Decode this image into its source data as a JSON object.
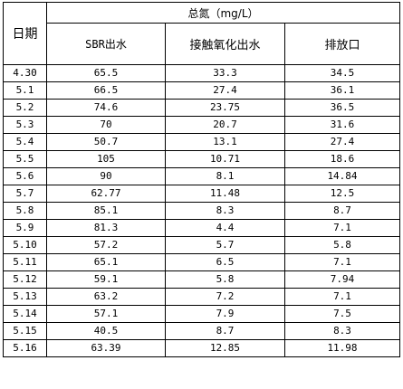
{
  "table": {
    "headers": {
      "date": "日期",
      "group": "总氮（mg/L）",
      "columns": [
        "SBR出水",
        "接触氧化出水",
        "排放口"
      ]
    },
    "rows": [
      {
        "date": "4.30",
        "sbr": "65.5",
        "contact": "33.3",
        "outlet": "34.5"
      },
      {
        "date": "5.1",
        "sbr": "66.5",
        "contact": "27.4",
        "outlet": "36.1"
      },
      {
        "date": "5.2",
        "sbr": "74.6",
        "contact": "23.75",
        "outlet": "36.5"
      },
      {
        "date": "5.3",
        "sbr": "70",
        "contact": "20.7",
        "outlet": "31.6"
      },
      {
        "date": "5.4",
        "sbr": "50.7",
        "contact": "13.1",
        "outlet": "27.4"
      },
      {
        "date": "5.5",
        "sbr": "105",
        "contact": "10.71",
        "outlet": "18.6"
      },
      {
        "date": "5.6",
        "sbr": "90",
        "contact": "8.1",
        "outlet": "14.84"
      },
      {
        "date": "5.7",
        "sbr": "62.77",
        "contact": "11.48",
        "outlet": "12.5"
      },
      {
        "date": "5.8",
        "sbr": "85.1",
        "contact": "8.3",
        "outlet": "8.7"
      },
      {
        "date": "5.9",
        "sbr": "81.3",
        "contact": "4.4",
        "outlet": "7.1"
      },
      {
        "date": "5.10",
        "sbr": "57.2",
        "contact": "5.7",
        "outlet": "5.8"
      },
      {
        "date": "5.11",
        "sbr": "65.1",
        "contact": "6.5",
        "outlet": "7.1"
      },
      {
        "date": "5.12",
        "sbr": "59.1",
        "contact": "5.8",
        "outlet": "7.94"
      },
      {
        "date": "5.13",
        "sbr": "63.2",
        "contact": "7.2",
        "outlet": "7.1"
      },
      {
        "date": "5.14",
        "sbr": "57.1",
        "contact": "7.9",
        "outlet": "7.5"
      },
      {
        "date": "5.15",
        "sbr": "40.5",
        "contact": "8.7",
        "outlet": "8.3"
      },
      {
        "date": "5.16",
        "sbr": "63.39",
        "contact": "12.85",
        "outlet": "11.98"
      }
    ]
  }
}
